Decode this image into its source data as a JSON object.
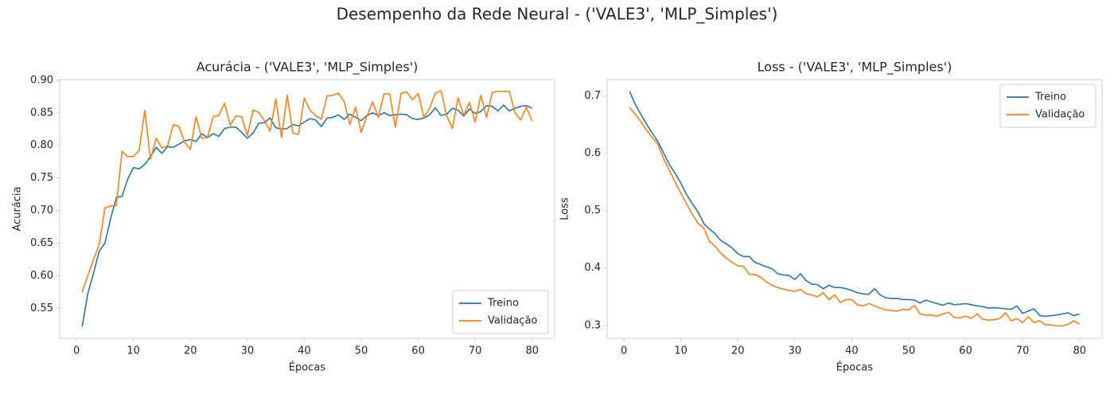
{
  "title": "Desempenho da Rede Neural - ('VALE3', 'MLP_Simples')",
  "chart_data": [
    {
      "type": "line",
      "title": "Acurácia - ('VALE3', 'MLP_Simples')",
      "xlabel": "Épocas",
      "ylabel": "Acurácia",
      "x": [
        1,
        2,
        3,
        4,
        5,
        6,
        7,
        8,
        9,
        10,
        11,
        12,
        13,
        14,
        15,
        16,
        17,
        18,
        19,
        20,
        21,
        22,
        23,
        24,
        25,
        26,
        27,
        28,
        29,
        30,
        31,
        32,
        33,
        34,
        35,
        36,
        37,
        38,
        39,
        40,
        41,
        42,
        43,
        44,
        45,
        46,
        47,
        48,
        49,
        50,
        51,
        52,
        53,
        54,
        55,
        56,
        57,
        58,
        59,
        60,
        61,
        62,
        63,
        64,
        65,
        66,
        67,
        68,
        69,
        70,
        71,
        72,
        73,
        74,
        75,
        76,
        77,
        78,
        79,
        80
      ],
      "series": [
        {
          "name": "Treino",
          "color": "#1f77b4",
          "values": [
            0.522,
            0.573,
            0.604,
            0.638,
            0.65,
            0.688,
            0.72,
            0.722,
            0.748,
            0.766,
            0.764,
            0.771,
            0.783,
            0.797,
            0.788,
            0.798,
            0.797,
            0.802,
            0.807,
            0.809,
            0.806,
            0.818,
            0.812,
            0.818,
            0.814,
            0.826,
            0.828,
            0.828,
            0.82,
            0.811,
            0.819,
            0.834,
            0.835,
            0.842,
            0.827,
            0.825,
            0.826,
            0.832,
            0.83,
            0.836,
            0.841,
            0.839,
            0.829,
            0.842,
            0.843,
            0.847,
            0.84,
            0.848,
            0.843,
            0.838,
            0.846,
            0.85,
            0.846,
            0.85,
            0.846,
            0.847,
            0.848,
            0.847,
            0.841,
            0.84,
            0.842,
            0.847,
            0.858,
            0.846,
            0.848,
            0.857,
            0.854,
            0.845,
            0.856,
            0.849,
            0.852,
            0.861,
            0.86,
            0.853,
            0.862,
            0.853,
            0.857,
            0.86,
            0.861,
            0.857
          ]
        },
        {
          "name": "Validação",
          "color": "#ff7f0e",
          "values": [
            0.575,
            0.6,
            0.625,
            0.648,
            0.704,
            0.707,
            0.708,
            0.791,
            0.783,
            0.783,
            0.792,
            0.854,
            0.779,
            0.811,
            0.796,
            0.799,
            0.832,
            0.829,
            0.805,
            0.794,
            0.844,
            0.811,
            0.812,
            0.844,
            0.846,
            0.865,
            0.831,
            0.845,
            0.844,
            0.815,
            0.854,
            0.851,
            0.838,
            0.822,
            0.871,
            0.812,
            0.877,
            0.819,
            0.817,
            0.873,
            0.854,
            0.846,
            0.84,
            0.876,
            0.877,
            0.88,
            0.867,
            0.832,
            0.859,
            0.82,
            0.845,
            0.867,
            0.843,
            0.879,
            0.879,
            0.828,
            0.88,
            0.882,
            0.87,
            0.88,
            0.843,
            0.857,
            0.88,
            0.884,
            0.846,
            0.826,
            0.873,
            0.846,
            0.866,
            0.836,
            0.877,
            0.843,
            0.881,
            0.883,
            0.883,
            0.883,
            0.85,
            0.839,
            0.859,
            0.837
          ]
        }
      ],
      "xlim": [
        -2.95,
        83.95
      ],
      "xticks": [
        0,
        10,
        20,
        30,
        40,
        50,
        60,
        70,
        80
      ],
      "ylim": [
        0.504,
        0.901
      ],
      "yticks": [
        0.55,
        {
          "value": 0.6,
          "label": "0.60"
        },
        0.65,
        {
          "value": 0.7,
          "label": "0.70"
        },
        0.75,
        {
          "value": 0.8,
          "label": "0.80"
        },
        0.85,
        {
          "value": 0.9,
          "label": "0.90"
        }
      ],
      "legend": "lower right",
      "grid": false
    },
    {
      "type": "line",
      "title": "Loss - ('VALE3', 'MLP_Simples')",
      "xlabel": "Épocas",
      "ylabel": "Loss",
      "x": [
        1,
        2,
        3,
        4,
        5,
        6,
        7,
        8,
        9,
        10,
        11,
        12,
        13,
        14,
        15,
        16,
        17,
        18,
        19,
        20,
        21,
        22,
        23,
        24,
        25,
        26,
        27,
        28,
        29,
        30,
        31,
        32,
        33,
        34,
        35,
        36,
        37,
        38,
        39,
        40,
        41,
        42,
        43,
        44,
        45,
        46,
        47,
        48,
        49,
        50,
        51,
        52,
        53,
        54,
        55,
        56,
        57,
        58,
        59,
        60,
        61,
        62,
        63,
        64,
        65,
        66,
        67,
        68,
        69,
        70,
        71,
        72,
        73,
        74,
        75,
        76,
        77,
        78,
        79,
        80
      ],
      "series": [
        {
          "name": "Treino",
          "color": "#1f77b4",
          "values": [
            0.708,
            0.685,
            0.668,
            0.65,
            0.635,
            0.62,
            0.6,
            0.58,
            0.565,
            0.548,
            0.528,
            0.512,
            0.498,
            0.478,
            0.468,
            0.46,
            0.448,
            0.442,
            0.435,
            0.425,
            0.42,
            0.42,
            0.41,
            0.406,
            0.402,
            0.399,
            0.39,
            0.388,
            0.387,
            0.38,
            0.39,
            0.378,
            0.372,
            0.371,
            0.364,
            0.37,
            0.366,
            0.366,
            0.364,
            0.361,
            0.357,
            0.355,
            0.354,
            0.364,
            0.353,
            0.348,
            0.347,
            0.347,
            0.345,
            0.345,
            0.344,
            0.339,
            0.344,
            0.341,
            0.338,
            0.335,
            0.339,
            0.336,
            0.337,
            0.338,
            0.336,
            0.334,
            0.333,
            0.33,
            0.331,
            0.33,
            0.329,
            0.328,
            0.334,
            0.321,
            0.325,
            0.329,
            0.317,
            0.316,
            0.317,
            0.318,
            0.32,
            0.322,
            0.317,
            0.32
          ]
        },
        {
          "name": "Validação",
          "color": "#ff7f0e",
          "values": [
            0.68,
            0.668,
            0.655,
            0.64,
            0.627,
            0.615,
            0.59,
            0.57,
            0.55,
            0.53,
            0.512,
            0.494,
            0.478,
            0.47,
            0.447,
            0.438,
            0.426,
            0.417,
            0.41,
            0.404,
            0.403,
            0.389,
            0.389,
            0.384,
            0.376,
            0.37,
            0.366,
            0.363,
            0.361,
            0.359,
            0.363,
            0.355,
            0.353,
            0.35,
            0.357,
            0.345,
            0.353,
            0.34,
            0.345,
            0.345,
            0.336,
            0.334,
            0.338,
            0.334,
            0.33,
            0.327,
            0.326,
            0.325,
            0.328,
            0.327,
            0.335,
            0.32,
            0.318,
            0.318,
            0.316,
            0.32,
            0.323,
            0.314,
            0.313,
            0.316,
            0.312,
            0.32,
            0.311,
            0.309,
            0.31,
            0.312,
            0.322,
            0.308,
            0.312,
            0.305,
            0.315,
            0.305,
            0.308,
            0.301,
            0.301,
            0.299,
            0.299,
            0.302,
            0.308,
            0.302
          ]
        }
      ],
      "xlim": [
        -2.95,
        83.95
      ],
      "xticks": [
        0,
        10,
        20,
        30,
        40,
        50,
        60,
        70,
        80
      ],
      "ylim": [
        0.2775,
        0.7285
      ],
      "yticks": [
        0.3,
        0.4,
        0.5,
        0.6,
        0.7
      ],
      "legend": "upper right",
      "grid": false
    }
  ]
}
